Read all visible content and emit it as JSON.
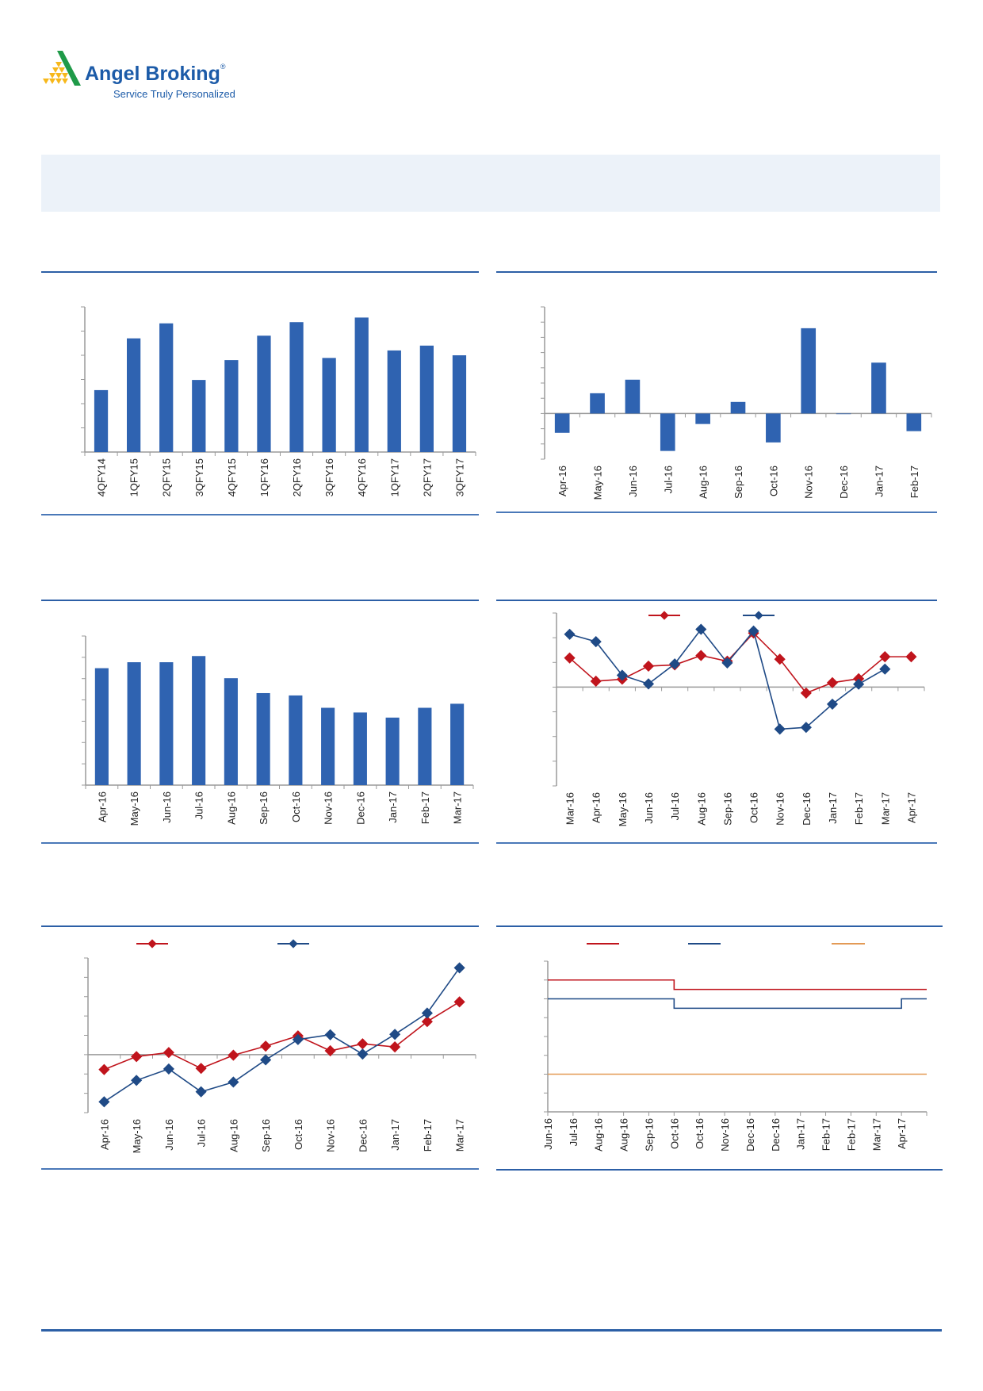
{
  "logo": {
    "name": "Angel Broking",
    "registered_mark": "®",
    "tagline": "Service Truly Personalized"
  },
  "colors": {
    "bar": "#2f63b1",
    "red_series": "#c0141c",
    "blue_series": "#1f4a86",
    "orange_series": "#e39a55",
    "rule": "#2c5fa6",
    "band": "#ecf2f9"
  },
  "chart_data": [
    {
      "type": "bar",
      "categories": [
        "4QFY14",
        "1QFY15",
        "2QFY15",
        "3QFY15",
        "4QFY15",
        "1QFY16",
        "2QFY16",
        "3QFY16",
        "4QFY16",
        "1QFY17",
        "2QFY17",
        "3QFY17"
      ],
      "values": [
        2.56,
        4.7,
        5.32,
        2.98,
        3.8,
        4.81,
        5.37,
        3.89,
        5.56,
        4.2,
        4.4,
        4.0
      ],
      "ylim": [
        0,
        6
      ],
      "ytick_step": 1,
      "grid": false
    },
    {
      "type": "bar",
      "categories": [
        "Apr-16",
        "May-16",
        "Jun-16",
        "Jul-16",
        "Aug-16",
        "Sep-16",
        "Oct-16",
        "Nov-16",
        "Dec-16",
        "Jan-17",
        "Feb-17"
      ],
      "values": [
        -1.27,
        1.33,
        2.22,
        -2.46,
        -0.69,
        0.76,
        -1.9,
        5.6,
        0,
        3.34,
        -1.16
      ],
      "ylim": [
        -3,
        7
      ],
      "ytick_step": 1,
      "grid": false
    },
    {
      "type": "bar",
      "categories": [
        "Apr-16",
        "May-16",
        "Jun-16",
        "Jul-16",
        "Aug-16",
        "Sep-16",
        "Oct-16",
        "Nov-16",
        "Dec-16",
        "Jan-17",
        "Feb-17",
        "Mar-17"
      ],
      "values": [
        5.49,
        5.77,
        5.77,
        6.06,
        5.02,
        4.32,
        4.21,
        3.63,
        3.41,
        3.17,
        3.63,
        3.82
      ],
      "ylim": [
        0,
        7
      ],
      "ytick_step": 1,
      "grid": false
    },
    {
      "type": "line",
      "categories": [
        "Mar-16",
        "Apr-16",
        "May-16",
        "Jun-16",
        "Jul-16",
        "Aug-16",
        "Sep-16",
        "Oct-16",
        "Nov-16",
        "Dec-16",
        "Jan-17",
        "Feb-17",
        "Mar-17",
        "Apr-17"
      ],
      "series": [
        {
          "color": "#c0141c",
          "values": [
            1.18,
            0.24,
            0.32,
            0.85,
            0.9,
            1.28,
            1.05,
            2.19,
            1.13,
            -0.24,
            0.18,
            0.34,
            1.23,
            1.23
          ]
        },
        {
          "color": "#1f4a86",
          "values": [
            2.14,
            1.84,
            0.48,
            0.13,
            0.94,
            2.34,
            0.98,
            2.27,
            -1.7,
            -1.63,
            -0.69,
            0.12,
            0.73,
            null
          ]
        }
      ],
      "ylim": [
        -4,
        3
      ],
      "ytick_step": 1,
      "legend": "top-center",
      "grid": false
    },
    {
      "type": "line",
      "categories": [
        "Apr-16",
        "May-16",
        "Jun-16",
        "Jul-16",
        "Aug-16",
        "Sep-16",
        "Oct-16",
        "Nov-16",
        "Dec-16",
        "Jan-17",
        "Feb-17",
        "Mar-17"
      ],
      "series": [
        {
          "color": "#c0141c",
          "values": [
            -0.77,
            -0.1,
            0.11,
            -0.71,
            -0.03,
            0.44,
            0.97,
            0.2,
            0.56,
            0.4,
            1.71,
            2.73
          ]
        },
        {
          "color": "#1f4a86",
          "values": [
            -2.44,
            -1.33,
            -0.74,
            -1.92,
            -1.42,
            -0.27,
            0.78,
            1.03,
            0.03,
            1.05,
            2.15,
            4.49
          ]
        }
      ],
      "ylim": [
        -3,
        5
      ],
      "ytick_step": 1,
      "legend": "top-left",
      "grid": false
    },
    {
      "type": "line",
      "step": true,
      "categories": [
        "Jun-16",
        "Jul-16",
        "Aug-16",
        "Aug-16",
        "Sep-16",
        "Oct-16",
        "Oct-16",
        "Nov-16",
        "Dec-16",
        "Dec-16",
        "Jan-17",
        "Feb-17",
        "Feb-17",
        "Mar-17",
        "Apr-17"
      ],
      "series": [
        {
          "color": "#c0141c",
          "values": [
            6.5,
            6.5,
            6.5,
            6.5,
            6.5,
            6.25,
            6.25,
            6.25,
            6.25,
            6.25,
            6.25,
            6.25,
            6.25,
            6.25,
            6.25
          ]
        },
        {
          "color": "#1f4a86",
          "values": [
            6.0,
            6.0,
            6.0,
            6.0,
            6.0,
            5.75,
            5.75,
            5.75,
            5.75,
            5.75,
            5.75,
            5.75,
            5.75,
            5.75,
            6.0
          ]
        },
        {
          "color": "#e39a55",
          "values": [
            4.0,
            4.0,
            4.0,
            4.0,
            4.0,
            4.0,
            4.0,
            4.0,
            4.0,
            4.0,
            4.0,
            4.0,
            4.0,
            4.0,
            4.0
          ]
        }
      ],
      "ylim": [
        3,
        7
      ],
      "ytick_step": 0.5,
      "legend": "top",
      "grid": false
    }
  ]
}
